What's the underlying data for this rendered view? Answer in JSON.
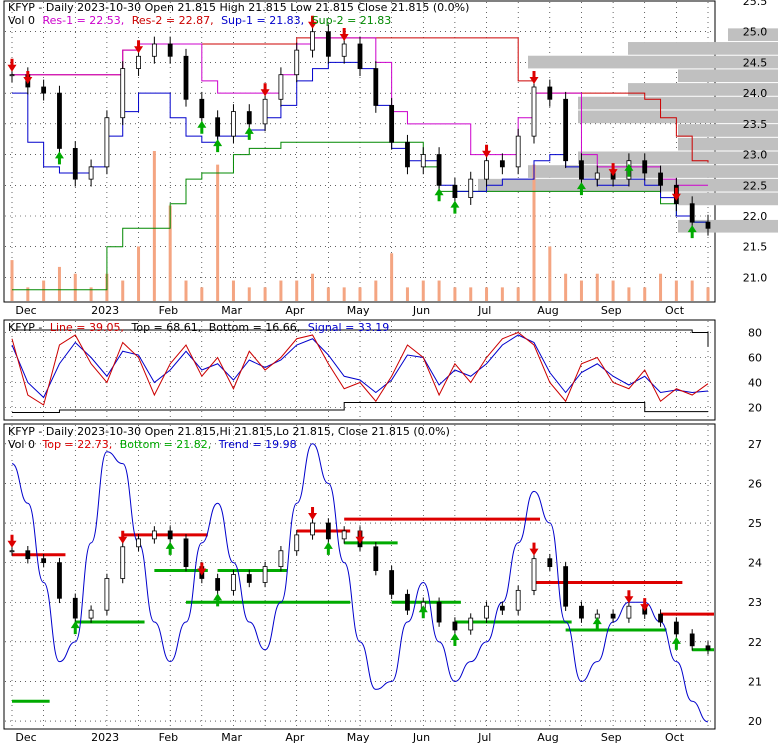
{
  "colors": {
    "price": "#000000",
    "res": "#cc00cc",
    "sup": "#0000cc",
    "res2": "#cc0000",
    "sup2": "#008800",
    "volume": "#f4a582",
    "profile": "#c0c0c0",
    "line": "#cc0000",
    "signal": "#0000cc",
    "trend": "#0000cc",
    "topLevel": "#dd0000",
    "bottomLevel": "#00aa00",
    "up": "#00aa00",
    "down": "#dd0000"
  },
  "panel1": {
    "symbol": "KFYP",
    "header": "KFYP - Daily 2023-10-30 Open 21.815  High 21.815  Low 21.815  Close 21.815 (0.0%)",
    "legend": {
      "vol": "Vol 0",
      "res1": "Res-1 = 22.53,",
      "res2": "Res-2 = 22.87,",
      "sup1": "Sup-1 = 21.83,",
      "sup2": "Sup-2 = 21.83"
    }
  },
  "panel2": {
    "legend": {
      "symbol": "KFYP -",
      "line": "Line = 39.05,",
      "top": "Top = 68.61,",
      "bottom": "Bottom = 16.66,",
      "signal": "Signal = 33.19"
    }
  },
  "panel3": {
    "header": "KFYP - Daily 2023-10-30 Open 21.815,Hi 21.815,Lo 21.815, Close 21.815 (0.0%)",
    "legend": {
      "vol": "Vol 0",
      "top": "Top = 22.73,",
      "bottom": "Bottom = 21.82,",
      "trend": "Trend = 19.98"
    }
  },
  "xaxis": {
    "labels": [
      "Dec",
      "2023",
      "Feb",
      "Mar",
      "Apr",
      "May",
      "Jun",
      "Jul",
      "Aug",
      "Sep",
      "Oct"
    ]
  },
  "chart_data": [
    {
      "type": "line",
      "title": "KFYP - Daily 2023-10-30 Open 21.815  High 21.815  Low 21.815  Close 21.815 (0.0%)",
      "x": [
        "Dec",
        "",
        "",
        "",
        "",
        "2023",
        "",
        "",
        "",
        "Feb",
        "",
        "",
        "",
        "Mar",
        "",
        "",
        "",
        "Apr",
        "",
        "",
        "",
        "May",
        "",
        "",
        "",
        "Jun",
        "",
        "",
        "",
        "Jul",
        "",
        "",
        "",
        "Aug",
        "",
        "",
        "",
        "Sep",
        "",
        "",
        "",
        "Oct",
        "",
        "",
        ""
      ],
      "ylim": [
        20.6,
        25.5
      ],
      "yticks": [
        21.0,
        21.5,
        22.0,
        22.5,
        23.0,
        23.5,
        24.0,
        24.5,
        25.0,
        25.5
      ],
      "series": [
        {
          "name": "Close",
          "values": [
            24.3,
            24.1,
            24.0,
            23.1,
            22.6,
            22.8,
            23.6,
            24.4,
            24.6,
            24.8,
            24.6,
            23.9,
            23.6,
            23.3,
            23.7,
            23.5,
            23.9,
            24.3,
            24.7,
            25.0,
            24.6,
            24.8,
            24.4,
            23.8,
            23.2,
            22.8,
            23.0,
            22.5,
            22.3,
            22.6,
            22.9,
            22.8,
            23.3,
            24.1,
            23.9,
            22.9,
            22.6,
            22.7,
            22.6,
            22.9,
            22.7,
            22.5,
            22.2,
            21.9,
            21.8
          ]
        },
        {
          "name": "Res-1",
          "values": [
            24.3,
            24.3,
            24.3,
            24.3,
            24.3,
            24.3,
            24.3,
            24.7,
            24.8,
            24.8,
            24.8,
            24.8,
            24.2,
            24.0,
            24.0,
            24.0,
            24.0,
            24.3,
            24.8,
            24.9,
            24.9,
            24.9,
            24.9,
            24.5,
            23.7,
            23.5,
            23.5,
            23.5,
            23.5,
            23.0,
            23.0,
            23.0,
            23.6,
            24.0,
            24.0,
            24.0,
            23.0,
            22.8,
            22.8,
            22.8,
            22.8,
            22.6,
            22.5,
            22.5,
            22.5
          ]
        },
        {
          "name": "Res-2",
          "values": [
            24.3,
            24.3,
            24.3,
            24.3,
            24.3,
            24.3,
            24.3,
            24.7,
            24.8,
            24.8,
            24.8,
            24.8,
            24.8,
            24.8,
            24.8,
            24.8,
            24.8,
            24.8,
            24.9,
            24.9,
            24.9,
            24.9,
            24.9,
            24.9,
            24.9,
            24.9,
            24.9,
            24.9,
            24.9,
            24.9,
            24.9,
            24.9,
            24.2,
            24.0,
            24.0,
            24.0,
            24.0,
            24.0,
            24.0,
            24.0,
            23.9,
            23.6,
            23.3,
            22.9,
            22.87
          ]
        },
        {
          "name": "Sup-1",
          "values": [
            24.0,
            23.2,
            22.8,
            22.7,
            22.7,
            22.8,
            23.3,
            23.7,
            24.0,
            24.0,
            23.6,
            23.3,
            23.2,
            23.3,
            23.3,
            23.4,
            23.6,
            23.8,
            24.2,
            24.4,
            24.5,
            24.5,
            24.4,
            23.8,
            23.1,
            22.9,
            22.9,
            22.5,
            22.4,
            22.4,
            22.5,
            22.6,
            22.6,
            22.9,
            23.0,
            22.8,
            22.6,
            22.5,
            22.5,
            22.6,
            22.5,
            22.3,
            22.0,
            21.9,
            21.83
          ]
        },
        {
          "name": "Sup-2",
          "values": [
            20.8,
            20.8,
            20.8,
            20.8,
            20.8,
            20.8,
            21.5,
            21.8,
            21.8,
            21.8,
            22.2,
            22.6,
            22.7,
            22.7,
            23.0,
            23.1,
            23.1,
            23.2,
            23.2,
            23.2,
            23.2,
            23.2,
            23.2,
            23.2,
            23.2,
            23.2,
            22.8,
            22.4,
            22.4,
            22.4,
            22.4,
            22.4,
            22.4,
            22.4,
            22.4,
            22.4,
            22.4,
            22.4,
            22.4,
            22.4,
            22.4,
            22.2,
            22.0,
            21.9,
            21.83
          ]
        }
      ],
      "volume": [
        0.6,
        0.2,
        0.3,
        0.5,
        0.4,
        0.2,
        0.4,
        0.3,
        0.8,
        2.2,
        1.4,
        0.3,
        0.2,
        2.0,
        0.3,
        0.2,
        0.2,
        0.3,
        0.3,
        0.4,
        0.2,
        0.2,
        0.2,
        0.3,
        0.7,
        0.2,
        0.3,
        0.3,
        0.2,
        0.2,
        0.2,
        0.2,
        0.2,
        2.0,
        0.8,
        0.4,
        0.3,
        0.4,
        0.3,
        0.2,
        0.2,
        0.4,
        0.3,
        0.3,
        0.2
      ],
      "markers": [
        {
          "i": 0,
          "dir": "down"
        },
        {
          "i": 1,
          "dir": "down"
        },
        {
          "i": 3,
          "dir": "up"
        },
        {
          "i": 8,
          "dir": "down"
        },
        {
          "i": 12,
          "dir": "up"
        },
        {
          "i": 13,
          "dir": "up"
        },
        {
          "i": 15,
          "dir": "up"
        },
        {
          "i": 16,
          "dir": "down"
        },
        {
          "i": 19,
          "dir": "down"
        },
        {
          "i": 21,
          "dir": "down"
        },
        {
          "i": 27,
          "dir": "up"
        },
        {
          "i": 28,
          "dir": "up"
        },
        {
          "i": 30,
          "dir": "down"
        },
        {
          "i": 33,
          "dir": "down"
        },
        {
          "i": 36,
          "dir": "up"
        },
        {
          "i": 38,
          "dir": "down"
        },
        {
          "i": 39,
          "dir": "up"
        },
        {
          "i": 42,
          "dir": "down"
        },
        {
          "i": 43,
          "dir": "up"
        }
      ]
    },
    {
      "type": "line",
      "x": [
        "Dec",
        "",
        "",
        "",
        "",
        "2023",
        "",
        "",
        "",
        "Feb",
        "",
        "",
        "",
        "Mar",
        "",
        "",
        "",
        "Apr",
        "",
        "",
        "",
        "May",
        "",
        "",
        "",
        "Jun",
        "",
        "",
        "",
        "Jul",
        "",
        "",
        "",
        "Aug",
        "",
        "",
        "",
        "Sep",
        "",
        "",
        "",
        "Oct",
        "",
        "",
        ""
      ],
      "ylim": [
        10,
        90
      ],
      "yticks": [
        20,
        40,
        60,
        80
      ],
      "series": [
        {
          "name": "Line",
          "values": [
            75,
            30,
            22,
            70,
            78,
            55,
            40,
            72,
            60,
            30,
            55,
            70,
            45,
            60,
            35,
            65,
            50,
            60,
            75,
            78,
            55,
            35,
            40,
            25,
            45,
            70,
            60,
            30,
            55,
            40,
            60,
            75,
            80,
            70,
            40,
            25,
            55,
            60,
            40,
            35,
            50,
            25,
            35,
            30,
            39.05
          ]
        },
        {
          "name": "Signal",
          "values": [
            70,
            40,
            28,
            55,
            72,
            60,
            45,
            65,
            62,
            40,
            50,
            65,
            50,
            55,
            42,
            58,
            52,
            58,
            70,
            75,
            62,
            45,
            42,
            32,
            42,
            62,
            60,
            38,
            50,
            45,
            55,
            70,
            78,
            72,
            48,
            32,
            48,
            55,
            45,
            38,
            45,
            32,
            34,
            32,
            33.19
          ]
        },
        {
          "name": "Top",
          "values": [
            82,
            82,
            82,
            82,
            82,
            82,
            82,
            82,
            82,
            82,
            82,
            82,
            82,
            82,
            82,
            82,
            82,
            82,
            82,
            82,
            82,
            82,
            82,
            82,
            82,
            82,
            82,
            82,
            82,
            82,
            82,
            82,
            82,
            82,
            82,
            82,
            82,
            82,
            82,
            82,
            82,
            82,
            82,
            80,
            68.61
          ]
        },
        {
          "name": "Bottom",
          "values": [
            16,
            16,
            16,
            18,
            18,
            18,
            18,
            18,
            18,
            18,
            18,
            18,
            18,
            18,
            18,
            18,
            18,
            18,
            18,
            18,
            18,
            24,
            24,
            24,
            24,
            24,
            24,
            24,
            24,
            24,
            24,
            24,
            24,
            24,
            24,
            24,
            24,
            24,
            24,
            24,
            16.66,
            16.66,
            16.66,
            16.66,
            16.66
          ]
        }
      ]
    },
    {
      "type": "line",
      "title": "KFYP - Daily 2023-10-30 Open 21.815,Hi 21.815,Lo 21.815, Close 21.815 (0.0%)",
      "x": [
        "Dec",
        "",
        "",
        "",
        "",
        "2023",
        "",
        "",
        "",
        "Feb",
        "",
        "",
        "",
        "Mar",
        "",
        "",
        "",
        "Apr",
        "",
        "",
        "",
        "May",
        "",
        "",
        "",
        "Jun",
        "",
        "",
        "",
        "Jul",
        "",
        "",
        "",
        "Aug",
        "",
        "",
        "",
        "Sep",
        "",
        "",
        "",
        "Oct",
        "",
        "",
        ""
      ],
      "ylim": [
        19.8,
        27.5
      ],
      "yticks": [
        20,
        21,
        22,
        23,
        24,
        25,
        26,
        27
      ],
      "series": [
        {
          "name": "Close",
          "values": [
            24.3,
            24.1,
            24.0,
            23.1,
            22.6,
            22.8,
            23.6,
            24.4,
            24.6,
            24.8,
            24.6,
            23.9,
            23.6,
            23.3,
            23.7,
            23.5,
            23.9,
            24.3,
            24.7,
            25.0,
            24.6,
            24.8,
            24.4,
            23.8,
            23.2,
            22.8,
            23.0,
            22.5,
            22.3,
            22.6,
            22.9,
            22.8,
            23.3,
            24.1,
            23.9,
            22.9,
            22.6,
            22.7,
            22.6,
            22.9,
            22.7,
            22.5,
            22.2,
            21.9,
            21.8
          ]
        },
        {
          "name": "Trend",
          "values": [
            26.5,
            25.5,
            23.5,
            21.5,
            22.0,
            24.5,
            26.8,
            26.5,
            24.5,
            22.5,
            21.5,
            22.5,
            24.5,
            25.5,
            24.0,
            22.5,
            21.8,
            23.0,
            25.5,
            27.0,
            26.0,
            24.0,
            22.0,
            20.8,
            21.0,
            22.5,
            23.5,
            22.0,
            21.0,
            21.5,
            22.0,
            23.0,
            24.5,
            25.8,
            25.0,
            22.5,
            21.0,
            21.5,
            22.5,
            23.0,
            23.0,
            22.5,
            21.5,
            20.5,
            19.98
          ]
        }
      ],
      "levels": [
        {
          "kind": "top",
          "from": 0,
          "to": 3,
          "value": 24.2
        },
        {
          "kind": "bottom",
          "from": 0,
          "to": 2,
          "value": 20.5
        },
        {
          "kind": "bottom",
          "from": 4,
          "to": 8,
          "value": 22.5
        },
        {
          "kind": "top",
          "from": 7,
          "to": 12,
          "value": 24.7
        },
        {
          "kind": "bottom",
          "from": 9,
          "to": 12,
          "value": 23.8
        },
        {
          "kind": "bottom",
          "from": 11,
          "to": 21,
          "value": 23.0
        },
        {
          "kind": "top",
          "from": 13,
          "to": 17,
          "value": 23.8
        },
        {
          "kind": "bottom",
          "from": 13,
          "to": 17,
          "value": 23.8
        },
        {
          "kind": "top",
          "from": 18,
          "to": 21,
          "value": 24.8
        },
        {
          "kind": "top",
          "from": 21,
          "to": 33,
          "value": 25.1
        },
        {
          "kind": "bottom",
          "from": 21,
          "to": 24,
          "value": 24.5
        },
        {
          "kind": "bottom",
          "from": 24,
          "to": 28,
          "value": 23.0
        },
        {
          "kind": "bottom",
          "from": 28,
          "to": 35,
          "value": 22.5
        },
        {
          "kind": "top",
          "from": 33,
          "to": 42,
          "value": 23.5
        },
        {
          "kind": "bottom",
          "from": 35,
          "to": 41,
          "value": 22.3
        },
        {
          "kind": "top",
          "from": 41,
          "to": 44,
          "value": 22.7
        },
        {
          "kind": "bottom",
          "from": 43,
          "to": 45,
          "value": 21.8
        }
      ],
      "markers": [
        {
          "i": 0,
          "dir": "down"
        },
        {
          "i": 4,
          "dir": "up"
        },
        {
          "i": 7,
          "dir": "down"
        },
        {
          "i": 10,
          "dir": "up"
        },
        {
          "i": 12,
          "dir": "down"
        },
        {
          "i": 13,
          "dir": "up"
        },
        {
          "i": 19,
          "dir": "down"
        },
        {
          "i": 20,
          "dir": "up"
        },
        {
          "i": 22,
          "dir": "down"
        },
        {
          "i": 26,
          "dir": "up"
        },
        {
          "i": 28,
          "dir": "up"
        },
        {
          "i": 33,
          "dir": "down"
        },
        {
          "i": 37,
          "dir": "up"
        },
        {
          "i": 39,
          "dir": "down"
        },
        {
          "i": 40,
          "dir": "down"
        },
        {
          "i": 42,
          "dir": "up"
        }
      ]
    }
  ]
}
